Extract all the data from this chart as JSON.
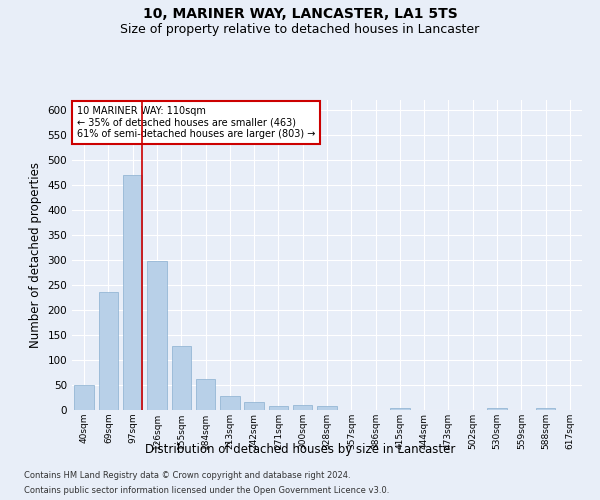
{
  "title": "10, MARINER WAY, LANCASTER, LA1 5TS",
  "subtitle": "Size of property relative to detached houses in Lancaster",
  "xlabel": "Distribution of detached houses by size in Lancaster",
  "ylabel": "Number of detached properties",
  "categories": [
    "40sqm",
    "69sqm",
    "97sqm",
    "126sqm",
    "155sqm",
    "184sqm",
    "213sqm",
    "242sqm",
    "271sqm",
    "300sqm",
    "328sqm",
    "357sqm",
    "386sqm",
    "415sqm",
    "444sqm",
    "473sqm",
    "502sqm",
    "530sqm",
    "559sqm",
    "588sqm",
    "617sqm"
  ],
  "values": [
    50,
    237,
    470,
    298,
    128,
    63,
    29,
    16,
    9,
    10,
    8,
    0,
    0,
    5,
    0,
    0,
    0,
    5,
    0,
    5,
    0
  ],
  "bar_color": "#b8d0e8",
  "bar_edge_color": "#8ab0d0",
  "highlight_bar_index": 2,
  "highlight_line_color": "#cc0000",
  "ylim": [
    0,
    620
  ],
  "yticks": [
    0,
    50,
    100,
    150,
    200,
    250,
    300,
    350,
    400,
    450,
    500,
    550,
    600
  ],
  "annotation_text": "10 MARINER WAY: 110sqm\n← 35% of detached houses are smaller (463)\n61% of semi-detached houses are larger (803) →",
  "annotation_box_color": "#ffffff",
  "annotation_box_edge_color": "#cc0000",
  "footer_line1": "Contains HM Land Registry data © Crown copyright and database right 2024.",
  "footer_line2": "Contains public sector information licensed under the Open Government Licence v3.0.",
  "background_color": "#e8eef8",
  "grid_color": "#ffffff",
  "title_fontsize": 10,
  "subtitle_fontsize": 9,
  "xlabel_fontsize": 8.5,
  "ylabel_fontsize": 8.5
}
